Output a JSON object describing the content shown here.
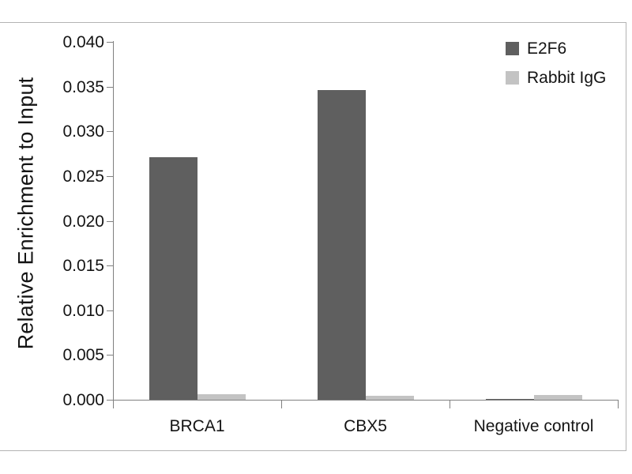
{
  "figure": {
    "background": "#ffffff",
    "frame_color": "#b3b3b3"
  },
  "chart_data": {
    "type": "bar",
    "title": "",
    "xlabel": "",
    "ylabel": "Relative Enrichment to Input",
    "categories": [
      "BRCA1",
      "CBX5",
      "Negative control"
    ],
    "series": [
      {
        "name": "E2F6",
        "color": "#5f5f5f",
        "values": [
          0.0271,
          0.0346,
          0.0001
        ]
      },
      {
        "name": "Rabbit IgG",
        "color": "#c3c3c3",
        "values": [
          0.0006,
          0.0004,
          0.0005
        ]
      }
    ],
    "ylim": [
      0,
      0.04
    ],
    "ytick_step": 0.005,
    "ytick_labels": [
      "0.000",
      "0.005",
      "0.010",
      "0.015",
      "0.020",
      "0.025",
      "0.030",
      "0.035",
      "0.040"
    ],
    "legend_position": "top-right",
    "grid": false,
    "axis_color": "#808080",
    "text_color": "#141414"
  }
}
